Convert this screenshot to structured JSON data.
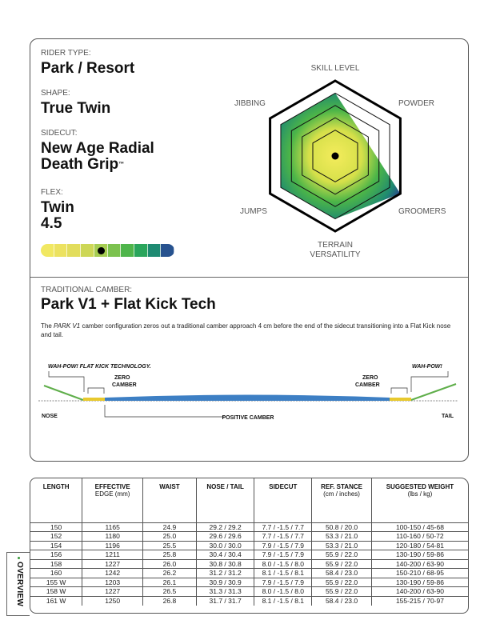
{
  "specs": {
    "rider_type_label": "RIDER TYPE:",
    "rider_type": "Park / Resort",
    "shape_label": "SHAPE:",
    "shape": "True Twin",
    "sidecut_label": "SIDECUT:",
    "sidecut_line1": "New Age Radial",
    "sidecut_line2": "Death Grip",
    "sidecut_tm": "™",
    "flex_label": "FLEX:",
    "flex_name": "Twin",
    "flex_value": "4.5",
    "flex_rating": 4.5,
    "flex_scale_max": 10
  },
  "radar": {
    "axes": [
      "SKILL LEVEL",
      "POWDER",
      "GROOMERS",
      "TERRAIN",
      "JUMPS",
      "JIBBING"
    ],
    "terrain_line2": "VERSATILITY",
    "values": [
      4,
      1.7,
      5,
      4,
      4,
      4
    ],
    "max": 5
  },
  "camber": {
    "title": "TRADITIONAL CAMBER:",
    "name": "Park V1 + Flat Kick Tech",
    "desc_pre": "The ",
    "desc_em": "PARK V1",
    "desc_post": " camber configuration zeros out a traditional camber approach 4 cm before the end of the sidecut transitioning into a Flat Kick nose and tail.",
    "label_left_callout": "WAH-POW! FLAT KICK TECHNOLOGY.",
    "label_right_callout": "WAH-POW!",
    "zero": "ZERO",
    "camber_word": "CAMBER",
    "nose": "NOSE",
    "tail": "TAIL",
    "positive": "POSITIVE CAMBER"
  },
  "table": {
    "headers": [
      [
        "LENGTH",
        ""
      ],
      [
        "EFFECTIVE",
        "EDGE (mm)"
      ],
      [
        "WAIST",
        ""
      ],
      [
        "NOSE / TAIL",
        ""
      ],
      [
        "SIDECUT",
        ""
      ],
      [
        "REF. STANCE",
        "(cm / inches)"
      ],
      [
        "SUGGESTED WEIGHT",
        "(lbs / kg)"
      ]
    ],
    "rows": [
      [
        "150",
        "1165",
        "24.9",
        "29.2 / 29.2",
        "7.7 / -1.5 / 7.7",
        "50.8 / 20.0",
        "100-150 / 45-68"
      ],
      [
        "152",
        "1180",
        "25.0",
        "29.6 / 29.6",
        "7.7 / -1.5 / 7.7",
        "53.3 / 21.0",
        "110-160 / 50-72"
      ],
      [
        "154",
        "1196",
        "25.5",
        "30.0 / 30.0",
        "7.9 / -1.5 / 7.9",
        "53.3 / 21.0",
        "120-180 / 54-81"
      ],
      [
        "156",
        "1211",
        "25.8",
        "30.4 / 30.4",
        "7.9 / -1.5 / 7.9",
        "55.9 / 22.0",
        "130-190 / 59-86"
      ],
      [
        "158",
        "1227",
        "26.0",
        "30.8 / 30.8",
        "8.0 / -1.5 / 8.0",
        "55.9 / 22.0",
        "140-200 / 63-90"
      ],
      [
        "160",
        "1242",
        "26.2",
        "31.2 / 31.2",
        "8.1 / -1.5 / 8.1",
        "58.4 / 23.0",
        "150-210 / 68-95"
      ],
      [
        "155 W",
        "1203",
        "26.1",
        "30.9 / 30.9",
        "7.9 / -1.5 / 7.9",
        "55.9 / 22.0",
        "130-190 / 59-86"
      ],
      [
        "158 W",
        "1227",
        "26.5",
        "31.3 / 31.3",
        "8.0 / -1.5 / 8.0",
        "55.9 / 22.0",
        "140-200 / 63-90"
      ],
      [
        "161 W",
        "1250",
        "26.8",
        "31.7 / 31.7",
        "8.1 / -1.5 / 8.1",
        "58.4 / 23.0",
        "155-215 / 70-97"
      ]
    ]
  },
  "side_tab": "OVERVIEW",
  "colors": {
    "yellow": "#f1e35a",
    "green": "#3fae4a",
    "blue": "#2a4a92",
    "board_blue": "#3d7fc4"
  }
}
